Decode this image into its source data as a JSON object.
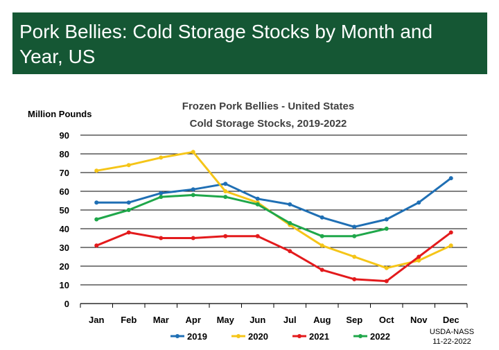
{
  "page": {
    "heading": "Pork Bellies: Cold Storage Stocks by Month and Year, US"
  },
  "chart_data": {
    "type": "line",
    "title": "Frozen Pork Bellies - United States",
    "subtitle": "Cold Storage Stocks, 2019-2022",
    "ylabel": "Million Pounds",
    "xlabel": "",
    "categories": [
      "Jan",
      "Feb",
      "Mar",
      "Apr",
      "May",
      "Jun",
      "Jul",
      "Aug",
      "Sep",
      "Oct",
      "Nov",
      "Dec"
    ],
    "ylim": [
      0,
      90
    ],
    "yticks": [
      0,
      10,
      20,
      30,
      40,
      50,
      60,
      70,
      80,
      90
    ],
    "grid": "horizontal",
    "legend": "bottom",
    "series": [
      {
        "name": "2019",
        "color": "#1F6FB4",
        "values": [
          54,
          54,
          59,
          61,
          64,
          56,
          53,
          46,
          41,
          45,
          54,
          67
        ]
      },
      {
        "name": "2020",
        "color": "#F5C518",
        "values": [
          71,
          74,
          78,
          81,
          60,
          54,
          42,
          31,
          25,
          19,
          23,
          31
        ]
      },
      {
        "name": "2021",
        "color": "#E31A1C",
        "values": [
          31,
          38,
          35,
          35,
          36,
          36,
          28,
          18,
          13,
          12,
          25,
          38
        ]
      },
      {
        "name": "2022",
        "color": "#1FA74A",
        "values": [
          45,
          50,
          57,
          58,
          57,
          53,
          43,
          36,
          36,
          40,
          null,
          null
        ]
      }
    ],
    "source_note": {
      "line1": "USDA-NASS",
      "line2": "11-22-2022"
    }
  }
}
